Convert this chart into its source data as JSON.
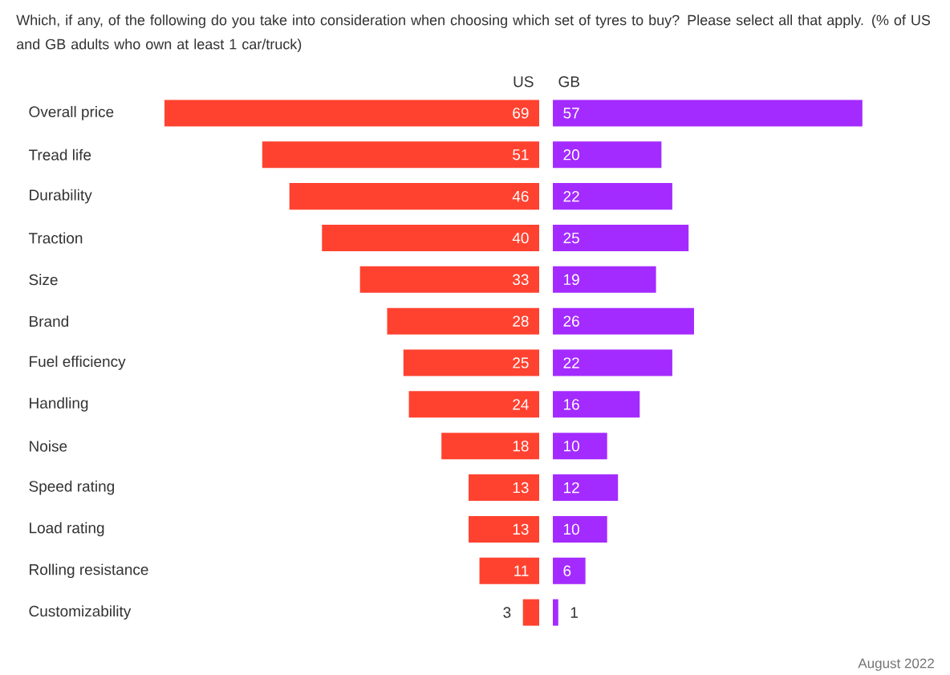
{
  "chart_data": [
    {
      "type": "bar",
      "orientation": "horizontal",
      "title": "Which, if any, of the following do you take into consideration when choosing which set of tyres to buy? Please select all that apply. (% of US and GB adults who own at least 1 car/truck)",
      "categories": [
        "Overall price",
        "Tread life",
        "Durability",
        "Traction",
        "Size",
        "Brand",
        "Fuel efficiency",
        "Handling",
        "Noise",
        "Speed rating",
        "Load rating",
        "Rolling resistance",
        "Customizability"
      ],
      "series": [
        {
          "name": "US",
          "color": "#ff4230",
          "values": [
            69,
            51,
            46,
            40,
            33,
            28,
            25,
            24,
            18,
            13,
            13,
            11,
            3
          ]
        }
      ],
      "data_labels": true,
      "tick_labels": "y"
    },
    {
      "type": "bar",
      "orientation": "horizontal",
      "series": [
        {
          "name": "GB",
          "color": "#a42bff",
          "values": [
            57,
            20,
            22,
            25,
            19,
            26,
            22,
            16,
            10,
            12,
            10,
            6,
            1
          ]
        }
      ],
      "data_labels": true,
      "tick_labels": false,
      "annotations": [
        "August 2022"
      ]
    }
  ]
}
